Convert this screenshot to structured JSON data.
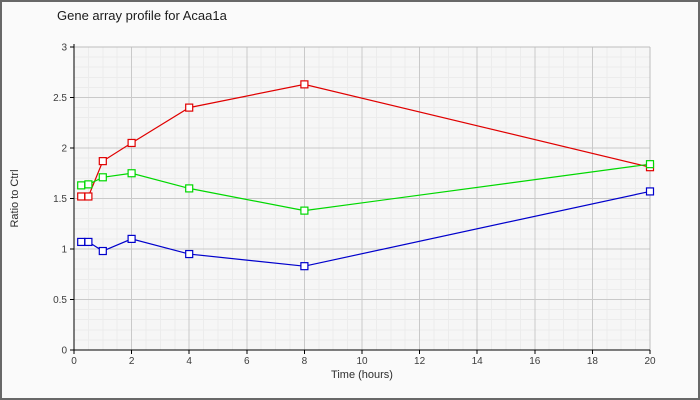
{
  "window": {
    "background": "#fafafa",
    "border_color": "#686868"
  },
  "chart_data": {
    "type": "line",
    "title": "Gene array profile for Acaa1a",
    "xlabel": "Time (hours)",
    "ylabel": "Ratio to Ctrl",
    "xlim": [
      0,
      20
    ],
    "ylim": [
      0,
      3
    ],
    "x_ticks": [
      0,
      2,
      4,
      6,
      8,
      10,
      12,
      14,
      16,
      18,
      20
    ],
    "y_ticks": [
      0,
      0.5,
      1,
      1.5,
      2,
      2.5,
      3
    ],
    "x_minor_step": 0.5,
    "y_minor_step": 0.1,
    "grid": "on",
    "legend": "none",
    "marker": "open-square",
    "plot_bg": "#f6f6f6",
    "grid_minor_color": "#ececec",
    "grid_major_color": "#c9c9c9",
    "frame_color": "#bdbdbd",
    "axis_color": "#000000",
    "x": [
      0.25,
      0.5,
      1,
      2,
      4,
      8,
      20
    ],
    "series": [
      {
        "name": "red",
        "color": "#e00000",
        "values": [
          1.52,
          1.52,
          1.87,
          2.05,
          2.4,
          2.63,
          1.81
        ]
      },
      {
        "name": "green",
        "color": "#00d800",
        "values": [
          1.63,
          1.64,
          1.71,
          1.75,
          1.6,
          1.38,
          1.84
        ]
      },
      {
        "name": "blue",
        "color": "#0000cc",
        "values": [
          1.07,
          1.07,
          0.98,
          1.1,
          0.95,
          0.83,
          1.57
        ]
      }
    ]
  }
}
